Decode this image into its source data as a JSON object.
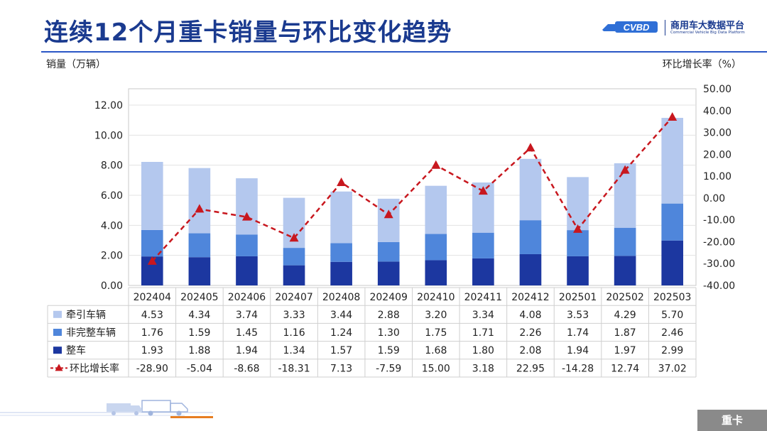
{
  "title": "连续12个月重卡销量与环比变化趋势",
  "logo": {
    "mark_text": "CVBD",
    "cn": "商用车大数据平台",
    "en": "Commercial Vehicle Big Data Platform"
  },
  "footer_tag": "重卡",
  "chart_data": {
    "type": "bar",
    "stacked": true,
    "categories": [
      "202404",
      "202405",
      "202406",
      "202407",
      "202408",
      "202409",
      "202410",
      "202411",
      "202412",
      "202501",
      "202502",
      "202503"
    ],
    "ylabel_left": "销量（万辆）",
    "ylabel_right": "环比增长率（%）",
    "ylim_left": [
      0,
      12
    ],
    "yticks_left": [
      "0.00",
      "2.00",
      "4.00",
      "6.00",
      "8.00",
      "10.00",
      "12.00"
    ],
    "ylim_right": [
      -40,
      50
    ],
    "yticks_right": [
      "-40.00",
      "-30.00",
      "-20.00",
      "-10.00",
      "0.00",
      "10.00",
      "20.00",
      "30.00",
      "40.00",
      "50.00"
    ],
    "series": [
      {
        "name": "牵引车辆",
        "kind": "bar",
        "color": "#b4c8ee",
        "values": [
          4.53,
          4.34,
          3.74,
          3.33,
          3.44,
          2.88,
          3.2,
          3.34,
          4.08,
          3.53,
          4.29,
          5.7
        ],
        "labels": [
          "4.53",
          "4.34",
          "3.74",
          "3.33",
          "3.44",
          "2.88",
          "3.20",
          "3.34",
          "4.08",
          "3.53",
          "4.29",
          "5.70"
        ]
      },
      {
        "name": "非完整车辆",
        "kind": "bar",
        "color": "#4f86db",
        "values": [
          1.76,
          1.59,
          1.45,
          1.16,
          1.24,
          1.3,
          1.75,
          1.71,
          2.26,
          1.74,
          1.87,
          2.46
        ],
        "labels": [
          "1.76",
          "1.59",
          "1.45",
          "1.16",
          "1.24",
          "1.30",
          "1.75",
          "1.71",
          "2.26",
          "1.74",
          "1.87",
          "2.46"
        ]
      },
      {
        "name": "整车",
        "kind": "bar",
        "color": "#1c37a0",
        "values": [
          1.93,
          1.88,
          1.94,
          1.34,
          1.57,
          1.59,
          1.68,
          1.8,
          2.08,
          1.94,
          1.97,
          2.99
        ],
        "labels": [
          "1.93",
          "1.88",
          "1.94",
          "1.34",
          "1.57",
          "1.59",
          "1.68",
          "1.80",
          "2.08",
          "1.94",
          "1.97",
          "2.99"
        ]
      },
      {
        "name": "环比增长率",
        "kind": "line",
        "axis": "right",
        "color": "#c8171e",
        "values": [
          -28.9,
          -5.04,
          -8.68,
          -18.31,
          7.13,
          -7.59,
          15.0,
          3.18,
          22.95,
          -14.28,
          12.74,
          37.02
        ],
        "labels": [
          "-28.90",
          "-5.04",
          "-8.68",
          "-18.31",
          "7.13",
          "-7.59",
          "15.00",
          "3.18",
          "22.95",
          "-14.28",
          "12.74",
          "37.02"
        ]
      }
    ],
    "grid": true,
    "legend": "data-table-below"
  }
}
